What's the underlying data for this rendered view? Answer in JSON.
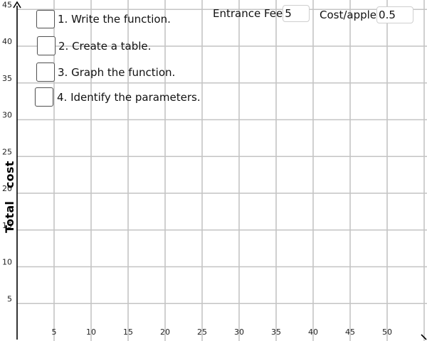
{
  "graph": {
    "y_axis_label": "Total   cost",
    "x_ticks": [
      "5",
      "10",
      "15",
      "20",
      "25",
      "30",
      "35",
      "40",
      "45",
      "50"
    ],
    "y_ticks": [
      "5",
      "10",
      "15",
      "20",
      "25",
      "30",
      "35",
      "40",
      "45"
    ],
    "x_range": [
      0,
      55
    ],
    "y_range": [
      0,
      45
    ],
    "grid": true,
    "grid_color": "#c4c4c4",
    "axis_color": "#000000"
  },
  "tasks": [
    {
      "label": "1. Write the function."
    },
    {
      "label": "2. Create a table."
    },
    {
      "label": "3. Graph the function."
    },
    {
      "label": "4. Identify the parameters."
    }
  ],
  "params": {
    "entrance_fee": {
      "label": "Entrance Fee",
      "value": "5"
    },
    "cost_per_apple": {
      "label": "Cost/apple",
      "value": "0.5"
    }
  }
}
